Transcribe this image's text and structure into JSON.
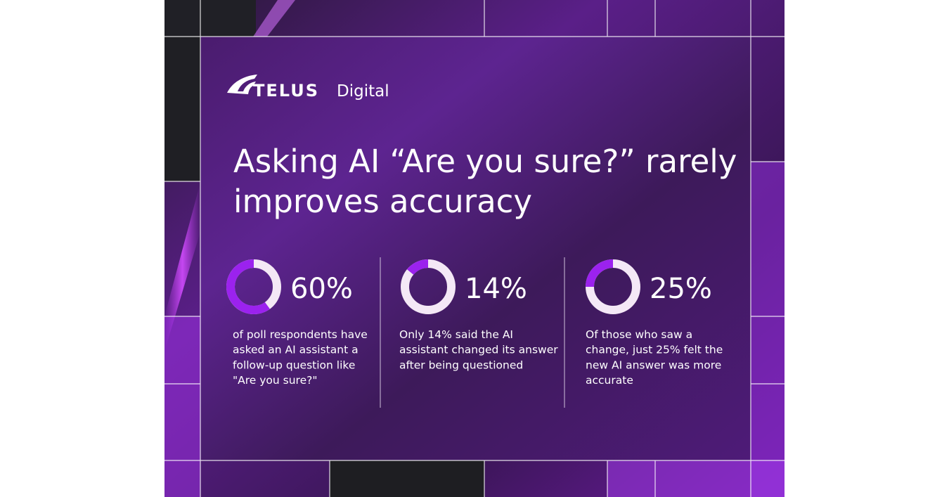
{
  "brand": {
    "name": "TELUS",
    "suffix": "Digital"
  },
  "title_lines": [
    "Asking AI “Are you sure?” rarely",
    "improves accuracy"
  ],
  "stats": [
    {
      "value": 60,
      "value_label": "60%",
      "text_lines": [
        "of poll respondents have",
        "asked an AI assistant a",
        "follow-up question like",
        "\"Are you sure?\""
      ]
    },
    {
      "value": 14,
      "value_label": "14%",
      "text_lines": [
        "Only 14% said the AI",
        "assistant changed its answer",
        "after being questioned"
      ]
    },
    {
      "value": 25,
      "value_label": "25%",
      "text_lines": [
        "Of those who saw a",
        "change, just 25% felt the",
        "new AI answer was more",
        "accurate"
      ]
    }
  ]
}
